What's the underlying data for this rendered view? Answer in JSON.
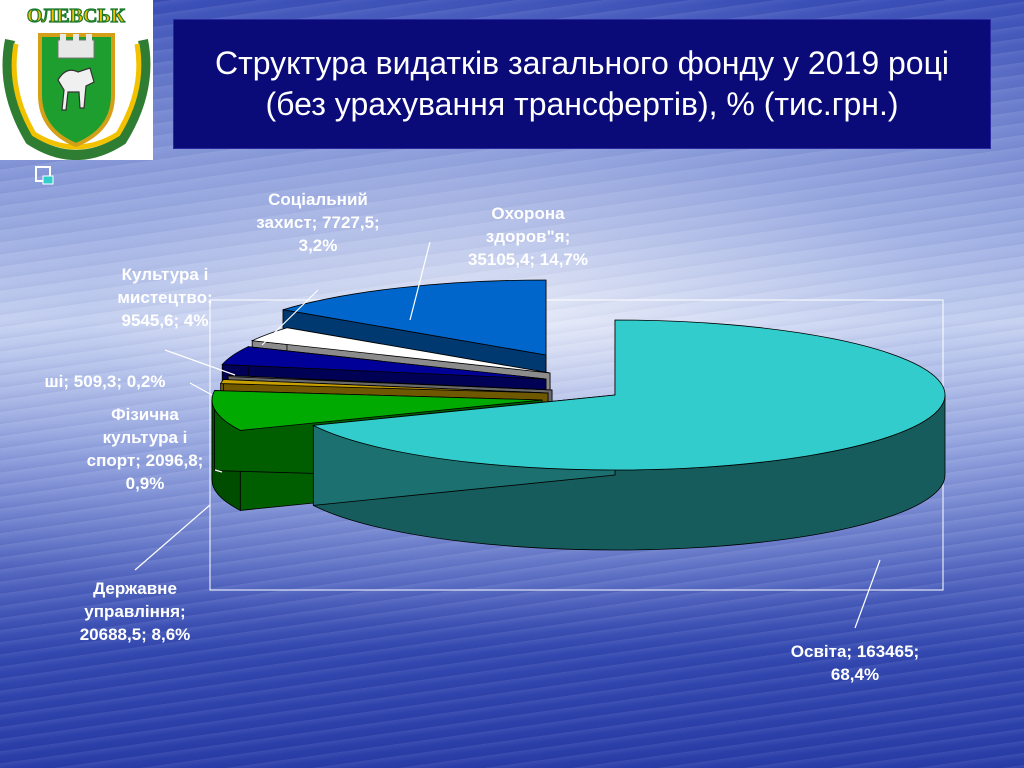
{
  "title_lines": [
    "Структура видатків загального фонду у 2019 році",
    "(без урахування трансфертів), % (тис.грн.)"
  ],
  "logo": {
    "text": "ОЛЕВСЬК",
    "name": "olevsk-coat-of-arms"
  },
  "chart_data": {
    "type": "pie",
    "title": "Структура видатків загального фонду у 2019 році (без урахування трансфертів), % (тис.грн.)",
    "unit": "тис.грн.",
    "slices": [
      {
        "name": "Освіта",
        "value": 163465,
        "percent": 68.4,
        "color": "#33cccc",
        "label_lines": [
          "Освіта; 163465;",
          "68,4%"
        ]
      },
      {
        "name": "Державне управління",
        "value": 20688.5,
        "percent": 8.6,
        "color": "#00aa00",
        "label_lines": [
          "Державне",
          "управління;",
          "20688,5; 8,6%"
        ]
      },
      {
        "name": "Фізична культура і спорт",
        "value": 2096.8,
        "percent": 0.9,
        "color": "#c8a000",
        "label_lines": [
          "Фізична",
          "культура і",
          "спорт; 2096,8;",
          "0,9%"
        ]
      },
      {
        "name": "Інші",
        "value": 509.3,
        "percent": 0.2,
        "color": "#c0c0c0",
        "label_lines": [
          "ші; 509,3; 0,2%"
        ]
      },
      {
        "name": "Культура і мистецтво",
        "value": 9545.6,
        "percent": 4.0,
        "color": "#000099",
        "label_lines": [
          "Культура і",
          "мистецтво;",
          "9545,6; 4%"
        ]
      },
      {
        "name": "Соціальний захист",
        "value": 7727.5,
        "percent": 3.2,
        "color": "#ffffff",
        "label_lines": [
          "Соціальний",
          "захист; 7727,5;",
          "3,2%"
        ]
      },
      {
        "name": "Охорона здоров\"я",
        "value": 35105.4,
        "percent": 14.7,
        "color": "#0066cc",
        "label_lines": [
          "Охорона",
          "здоров\"я;",
          "35105,4; 14,7%"
        ]
      }
    ]
  }
}
